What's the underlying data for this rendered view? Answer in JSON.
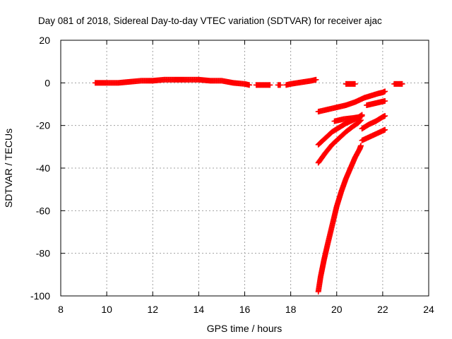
{
  "chart_data": {
    "type": "scatter",
    "title": "Day 081 of 2018, Sidereal Day-to-day VTEC variation (SDTVAR) for receiver ajac",
    "xlabel": "GPS time / hours",
    "ylabel": "SDTVAR / TECUs",
    "xlim": [
      8,
      24
    ],
    "ylim": [
      -100,
      20
    ],
    "xticks": [
      "8",
      "10",
      "12",
      "14",
      "16",
      "18",
      "20",
      "22",
      "24"
    ],
    "yticks": [
      "20",
      "0",
      "-20",
      "-40",
      "-60",
      "-80",
      "-100"
    ],
    "grid": true,
    "colors": {
      "marker": "#ff0000",
      "grid": "#a0a0a0",
      "axis": "#000000"
    },
    "series": [
      {
        "marker": "plus",
        "segments": [
          {
            "x": [
              9.5,
              10.0,
              10.5,
              11.0,
              11.5,
              12.0,
              12.5,
              13.0,
              13.5,
              14.0,
              14.5,
              15.0,
              15.5,
              16.0,
              16.2
            ],
            "y": [
              0,
              0,
              0,
              0.5,
              1,
              1,
              1.5,
              1.5,
              1.5,
              1.5,
              1,
              1,
              0,
              -0.5,
              -1
            ]
          },
          {
            "x": [
              16.5,
              16.7,
              16.9,
              17.1
            ],
            "y": [
              -1,
              -1,
              -1,
              -1
            ]
          },
          {
            "x": [
              17.45,
              17.55
            ],
            "y": [
              -1,
              -1
            ]
          },
          {
            "x": [
              17.8,
              18.0,
              18.3,
              18.6,
              18.9,
              19.1
            ],
            "y": [
              -1,
              -0.5,
              0,
              0.5,
              1,
              1.5
            ]
          },
          {
            "x": [
              20.4,
              20.6,
              20.8
            ],
            "y": [
              -0.5,
              -0.5,
              -0.5
            ]
          },
          {
            "x": [
              22.5,
              22.7,
              22.85
            ],
            "y": [
              -0.5,
              -0.5,
              -0.5
            ]
          },
          {
            "x": [
              19.2,
              19.6,
              20.0,
              20.4,
              20.8,
              21.0,
              21.2,
              21.5,
              21.8,
              22.0,
              22.1
            ],
            "y": [
              -13.5,
              -12.5,
              -11.5,
              -10.5,
              -9,
              -8,
              -7,
              -6,
              -5,
              -4.5,
              -4
            ]
          },
          {
            "x": [
              21.3,
              21.5,
              21.7,
              21.9,
              22.1
            ],
            "y": [
              -10.5,
              -10,
              -9.5,
              -9,
              -8.5
            ]
          },
          {
            "x": [
              19.2,
              19.5,
              19.8,
              20.1,
              20.4,
              20.7,
              20.9,
              21.1
            ],
            "y": [
              -29,
              -26,
              -23,
              -21,
              -19,
              -17.5,
              -16.5,
              -15
            ]
          },
          {
            "x": [
              19.9,
              20.3,
              20.7,
              21.0,
              21.1
            ],
            "y": [
              -18,
              -17,
              -16.5,
              -16,
              -15.5
            ]
          },
          {
            "x": [
              19.2,
              19.5,
              19.8,
              20.1,
              20.4,
              20.7,
              20.9,
              21.05
            ],
            "y": [
              -37.5,
              -33,
              -29,
              -26,
              -23,
              -20.5,
              -19,
              -17.5
            ]
          },
          {
            "x": [
              21.1,
              21.4,
              21.7,
              22.0,
              22.1
            ],
            "y": [
              -21.5,
              -19.5,
              -18,
              -16,
              -15.5
            ]
          },
          {
            "x": [
              21.1,
              21.4,
              21.7,
              22.0,
              22.1
            ],
            "y": [
              -27,
              -25.5,
              -24,
              -22.5,
              -22
            ]
          },
          {
            "x": [
              19.2,
              19.3,
              19.45,
              19.6,
              19.8,
              20.0,
              20.2,
              20.4,
              20.6,
              20.8,
              21.0,
              21.05
            ],
            "y": [
              -98,
              -91,
              -83,
              -76,
              -67,
              -58,
              -51,
              -45,
              -40,
              -35,
              -31,
              -29.5
            ]
          }
        ]
      }
    ]
  }
}
